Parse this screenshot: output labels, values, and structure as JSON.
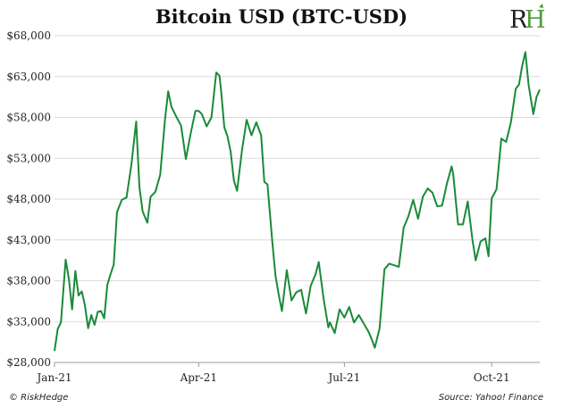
{
  "title": "Bitcoin USD (BTC-USD)",
  "logo_text": "RH",
  "footer": {
    "left": "© RiskHedge",
    "right": "Source: Yahoo! Finance"
  },
  "colors": {
    "line": "#1a8a3a",
    "grid": "#d9d9d9",
    "logo_green": "#4f9a3a",
    "logo_dark": "#1f1f1f"
  },
  "chart_data": {
    "type": "line",
    "title": "Bitcoin USD (BTC-USD)",
    "xlabel": "",
    "ylabel": "",
    "ylim": [
      28000,
      68000
    ],
    "yticks": [
      28000,
      33000,
      38000,
      43000,
      48000,
      53000,
      58000,
      63000,
      68000
    ],
    "ytick_labels": [
      "$28,000",
      "$33,000",
      "$38,000",
      "$43,000",
      "$48,000",
      "$53,000",
      "$58,000",
      "$63,000",
      "$68,000"
    ],
    "xlim": [
      "2021-01-01",
      "2021-10-31"
    ],
    "xticks": [
      "2021-01-01",
      "2021-04-01",
      "2021-07-01",
      "2021-10-01"
    ],
    "xtick_labels": [
      "Jan-21",
      "Apr-21",
      "Jul-21",
      "Oct-21"
    ],
    "grid": "horizontal",
    "series": [
      {
        "x": [
          "2021-01-01",
          "2021-01-03",
          "2021-01-05",
          "2021-01-08",
          "2021-01-10",
          "2021-01-12",
          "2021-01-14",
          "2021-01-16",
          "2021-01-18",
          "2021-01-20",
          "2021-01-22",
          "2021-01-24",
          "2021-01-26",
          "2021-01-28",
          "2021-01-30",
          "2021-02-01",
          "2021-02-03",
          "2021-02-05",
          "2021-02-07",
          "2021-02-09",
          "2021-02-12",
          "2021-02-15",
          "2021-02-18",
          "2021-02-21",
          "2021-02-23",
          "2021-02-25",
          "2021-02-28",
          "2021-03-02",
          "2021-03-05",
          "2021-03-08",
          "2021-03-11",
          "2021-03-13",
          "2021-03-15",
          "2021-03-18",
          "2021-03-21",
          "2021-03-24",
          "2021-03-27",
          "2021-03-30",
          "2021-04-01",
          "2021-04-03",
          "2021-04-06",
          "2021-04-09",
          "2021-04-12",
          "2021-04-14",
          "2021-04-15",
          "2021-04-17",
          "2021-04-19",
          "2021-04-21",
          "2021-04-23",
          "2021-04-25",
          "2021-04-28",
          "2021-05-01",
          "2021-05-04",
          "2021-05-07",
          "2021-05-10",
          "2021-05-12",
          "2021-05-14",
          "2021-05-17",
          "2021-05-19",
          "2021-05-21",
          "2021-05-23",
          "2021-05-26",
          "2021-05-29",
          "2021-06-01",
          "2021-06-04",
          "2021-06-07",
          "2021-06-10",
          "2021-06-13",
          "2021-06-15",
          "2021-06-18",
          "2021-06-21",
          "2021-06-22",
          "2021-06-25",
          "2021-06-28",
          "2021-07-01",
          "2021-07-04",
          "2021-07-07",
          "2021-07-10",
          "2021-07-13",
          "2021-07-16",
          "2021-07-18",
          "2021-07-20",
          "2021-07-23",
          "2021-07-26",
          "2021-07-29",
          "2021-08-01",
          "2021-08-04",
          "2021-08-07",
          "2021-08-10",
          "2021-08-13",
          "2021-08-16",
          "2021-08-19",
          "2021-08-22",
          "2021-08-25",
          "2021-08-28",
          "2021-08-31",
          "2021-09-03",
          "2021-09-06",
          "2021-09-07",
          "2021-09-10",
          "2021-09-13",
          "2021-09-16",
          "2021-09-19",
          "2021-09-21",
          "2021-09-24",
          "2021-09-27",
          "2021-09-29",
          "2021-10-01",
          "2021-10-04",
          "2021-10-07",
          "2021-10-10",
          "2021-10-13",
          "2021-10-16",
          "2021-10-18",
          "2021-10-20",
          "2021-10-22",
          "2021-10-24",
          "2021-10-27",
          "2021-10-29",
          "2021-10-31"
        ],
        "y": [
          29400,
          32100,
          32900,
          40600,
          38200,
          34500,
          39200,
          36200,
          36700,
          35000,
          32200,
          33800,
          32600,
          34200,
          34300,
          33400,
          37500,
          38800,
          40000,
          46400,
          47900,
          48200,
          52200,
          57500,
          49500,
          46500,
          45100,
          48300,
          48900,
          51000,
          57800,
          61200,
          59300,
          58100,
          57000,
          52900,
          56000,
          58800,
          58800,
          58400,
          56900,
          58000,
          63500,
          63100,
          61300,
          56800,
          55700,
          53800,
          50300,
          49000,
          53900,
          57700,
          55800,
          57400,
          55800,
          50100,
          49800,
          42800,
          38600,
          36300,
          34300,
          39300,
          35600,
          36600,
          36900,
          34000,
          37400,
          38800,
          40300,
          35800,
          32300,
          32900,
          31600,
          34500,
          33500,
          34800,
          32900,
          33800,
          32800,
          31800,
          30900,
          29800,
          32200,
          39400,
          40100,
          39900,
          39700,
          44500,
          45900,
          47900,
          45600,
          48300,
          49300,
          48800,
          47100,
          47200,
          49900,
          52000,
          51000,
          44900,
          44900,
          47700,
          43000,
          40500,
          42800,
          43200,
          41000,
          48100,
          49200,
          55400,
          55000,
          57400,
          61500,
          62000,
          64300,
          66000,
          62000,
          58400,
          60500,
          61400
        ]
      }
    ]
  }
}
